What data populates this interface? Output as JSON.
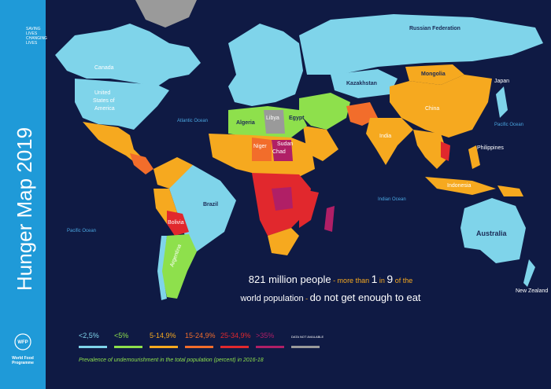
{
  "sidebar": {
    "tagline": [
      "SAVING",
      "LIVES",
      "CHANGING",
      "LIVES"
    ],
    "title": "Hunger Map 2019",
    "logo": "WFP",
    "organization": [
      "World Food",
      "Programme"
    ]
  },
  "map": {
    "labels": [
      "Russian Federation",
      "Canada",
      "United",
      "States of",
      "America",
      "Atlantic Ocean",
      "Pacific Ocean",
      "Brazil",
      "Bolivia",
      "Argentina",
      "China",
      "India",
      "Mongolia",
      "Kazakhstan",
      "Japan",
      "Pacific Ocean",
      "Indian Ocean",
      "Australia",
      "New Zealand",
      "Algeria",
      "Libya",
      "Egypt",
      "Niger",
      "Chad",
      "Sudan",
      "Indonesia",
      "Philippines"
    ]
  },
  "headline": {
    "line1": [
      "821 million people",
      " - more than ",
      "1",
      " in ",
      "9",
      " of the"
    ],
    "line2": [
      "world population",
      " - ",
      "do not get enough to eat"
    ]
  },
  "legend": {
    "items": [
      {
        "label": "<2,5%",
        "color": "#7fd4ea"
      },
      {
        "label": "<5%",
        "color": "#8ee04c"
      },
      {
        "label": "5-14,9%",
        "color": "#f6a91f"
      },
      {
        "label": "15-24,9%",
        "color": "#f26d2b"
      },
      {
        "label": "25-34,9%",
        "color": "#e1282d"
      },
      {
        "label": ">35%",
        "color": "#b01f66"
      },
      {
        "label": "DATA NOT AVAILABLE",
        "color": "#9a9a9a"
      }
    ],
    "caption": "Prevalence of undernourishment in the total population (percent) in 2016-18"
  }
}
